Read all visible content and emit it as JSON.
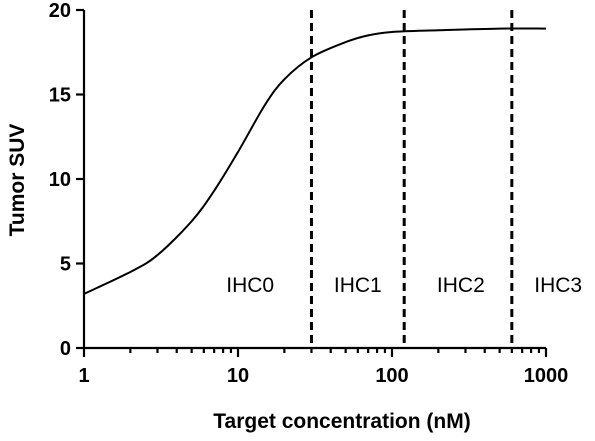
{
  "chart_data": {
    "type": "line",
    "xlabel": "Target concentration (nM)",
    "ylabel": "Tumor SUV",
    "x_scale": "log",
    "xlim": [
      1,
      1000
    ],
    "ylim": [
      0,
      20
    ],
    "x_ticks": [
      1,
      10,
      100,
      1000
    ],
    "x_tick_labels": [
      "1",
      "10",
      "100",
      "1000"
    ],
    "y_ticks": [
      0,
      5,
      10,
      15,
      20
    ],
    "y_tick_labels": [
      "0",
      "5",
      "10",
      "15",
      "20"
    ],
    "grid": false,
    "series": [
      {
        "x": [
          1,
          2,
          3,
          5,
          7,
          10,
          15,
          20,
          30,
          50,
          70,
          100,
          200,
          500,
          1000
        ],
        "y": [
          3.2,
          4.5,
          5.5,
          7.5,
          9.3,
          11.6,
          14.4,
          15.9,
          17.2,
          18.1,
          18.5,
          18.7,
          18.8,
          18.9,
          18.9
        ]
      }
    ],
    "thresholds": [
      {
        "x": 30
      },
      {
        "x": 120
      },
      {
        "x": 600
      }
    ],
    "regions": [
      {
        "label": "IHC0",
        "x": 12,
        "y": 3.3
      },
      {
        "label": "IHC1",
        "x": 60,
        "y": 3.3
      },
      {
        "label": "IHC2",
        "x": 280,
        "y": 3.3
      },
      {
        "label": "IHC3",
        "x": 1200,
        "y": 3.3
      }
    ]
  }
}
